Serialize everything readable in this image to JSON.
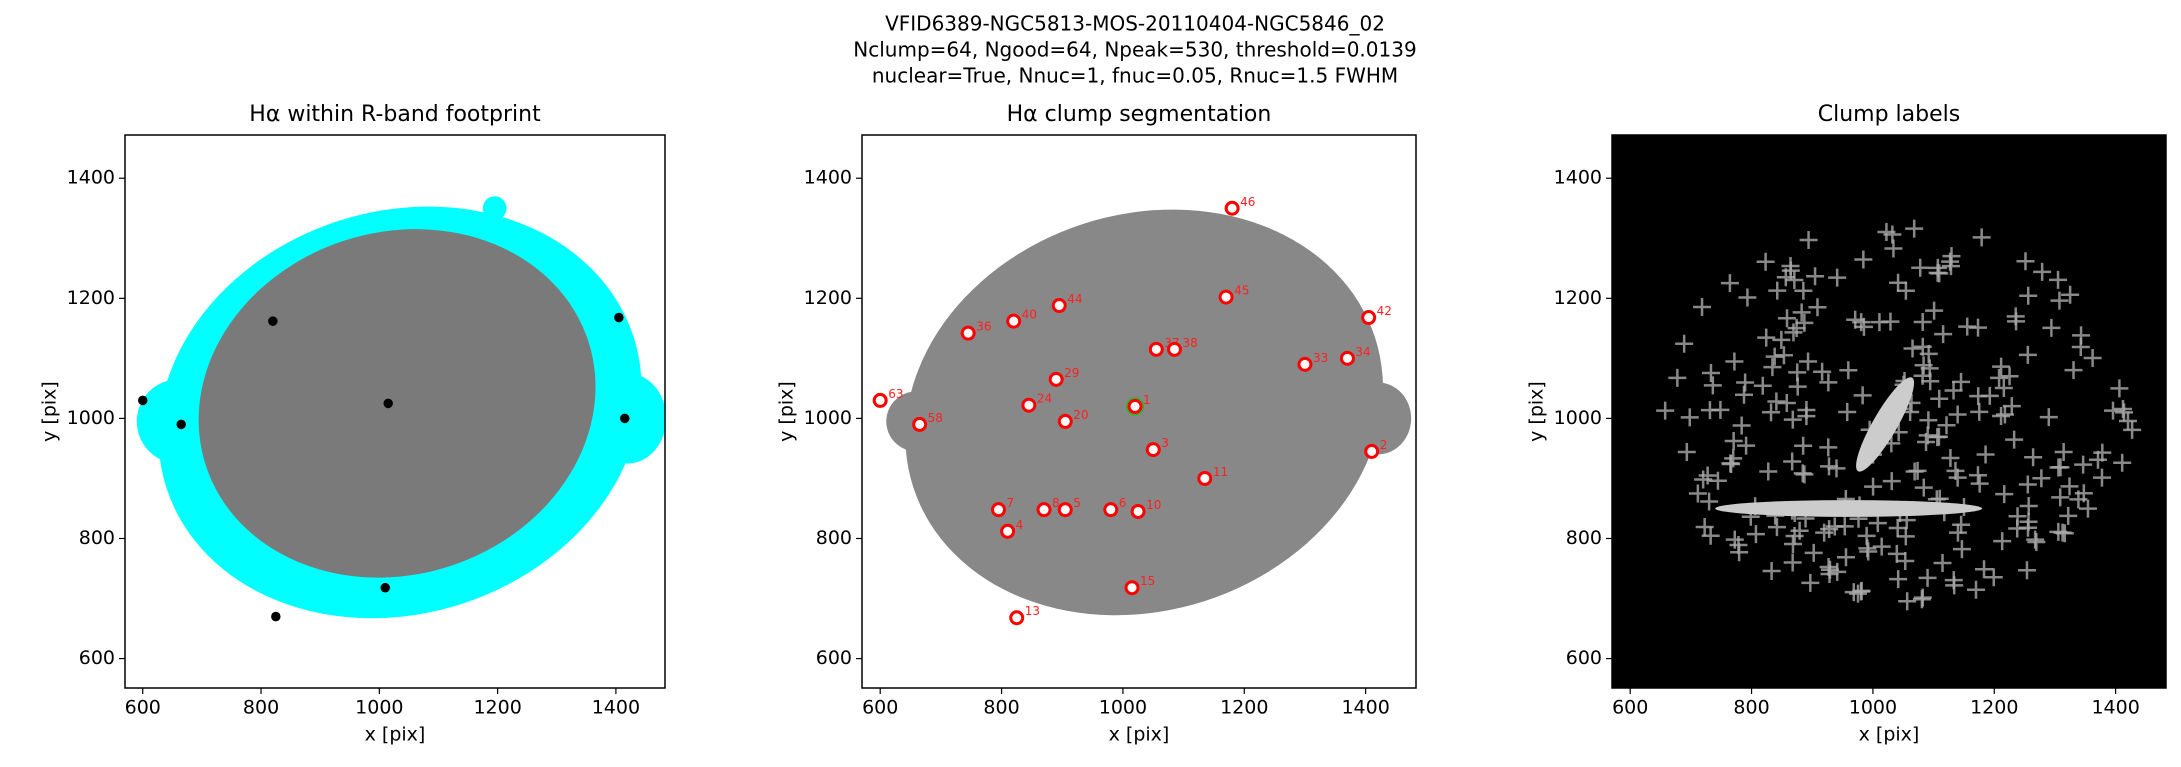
{
  "suptitle": [
    "VFID6389-NGC5813-MOS-20110404-NGC5846_02",
    "Nclump=64, Ngood=64, Npeak=530, threshold=0.0139",
    "nuclear=True, Nnuc=1, fnuc=0.05, Rnuc=1.5 FWHM"
  ],
  "chart_data": [
    {
      "type": "image",
      "title": "Hα within R-band footprint",
      "xlabel": "x [pix]",
      "ylabel": "y [pix]",
      "xlim": [
        570,
        1483
      ],
      "ylim": [
        551,
        1472
      ],
      "xticks": [
        600,
        800,
        1000,
        1200,
        1400
      ],
      "yticks": [
        600,
        800,
        1000,
        1200,
        1400
      ]
    },
    {
      "type": "scatter",
      "title": "Hα clump segmentation",
      "xlabel": "x [pix]",
      "ylabel": "y [pix]",
      "xlim": [
        570,
        1483
      ],
      "ylim": [
        551,
        1472
      ],
      "xticks": [
        600,
        800,
        1000,
        1200,
        1400
      ],
      "yticks": [
        600,
        800,
        1000,
        1200,
        1400
      ],
      "color": "#ff0000",
      "x": [
        1180,
        1170,
        895,
        820,
        745,
        1405,
        1055,
        1085,
        1300,
        1370,
        890,
        845,
        905,
        600,
        665,
        1135,
        1050,
        1410,
        795,
        870,
        905,
        980,
        1025,
        810,
        1015,
        825,
        1020
      ],
      "y": [
        1350,
        1202,
        1188,
        1162,
        1142,
        1168,
        1115,
        1115,
        1090,
        1100,
        1065,
        1022,
        995,
        1030,
        990,
        900,
        948,
        945,
        848,
        848,
        848,
        848,
        845,
        812,
        718,
        668,
        1020
      ],
      "labels": [
        "46",
        "45",
        "44",
        "40",
        "36",
        "42",
        "37",
        "38",
        "33",
        "34",
        "29",
        "24",
        "20",
        "63",
        "58",
        "11",
        "3",
        "2",
        "7",
        "8",
        "5",
        "6",
        "10",
        "4",
        "15",
        "13",
        "1"
      ]
    },
    {
      "type": "image",
      "title": "Clump labels",
      "xlabel": "x [pix]",
      "ylabel": "y [pix]",
      "xlim": [
        570,
        1483
      ],
      "ylim": [
        551,
        1472
      ],
      "xticks": [
        600,
        800,
        1000,
        1200,
        1400
      ],
      "yticks": [
        600,
        800,
        1000,
        1200,
        1400
      ]
    }
  ]
}
